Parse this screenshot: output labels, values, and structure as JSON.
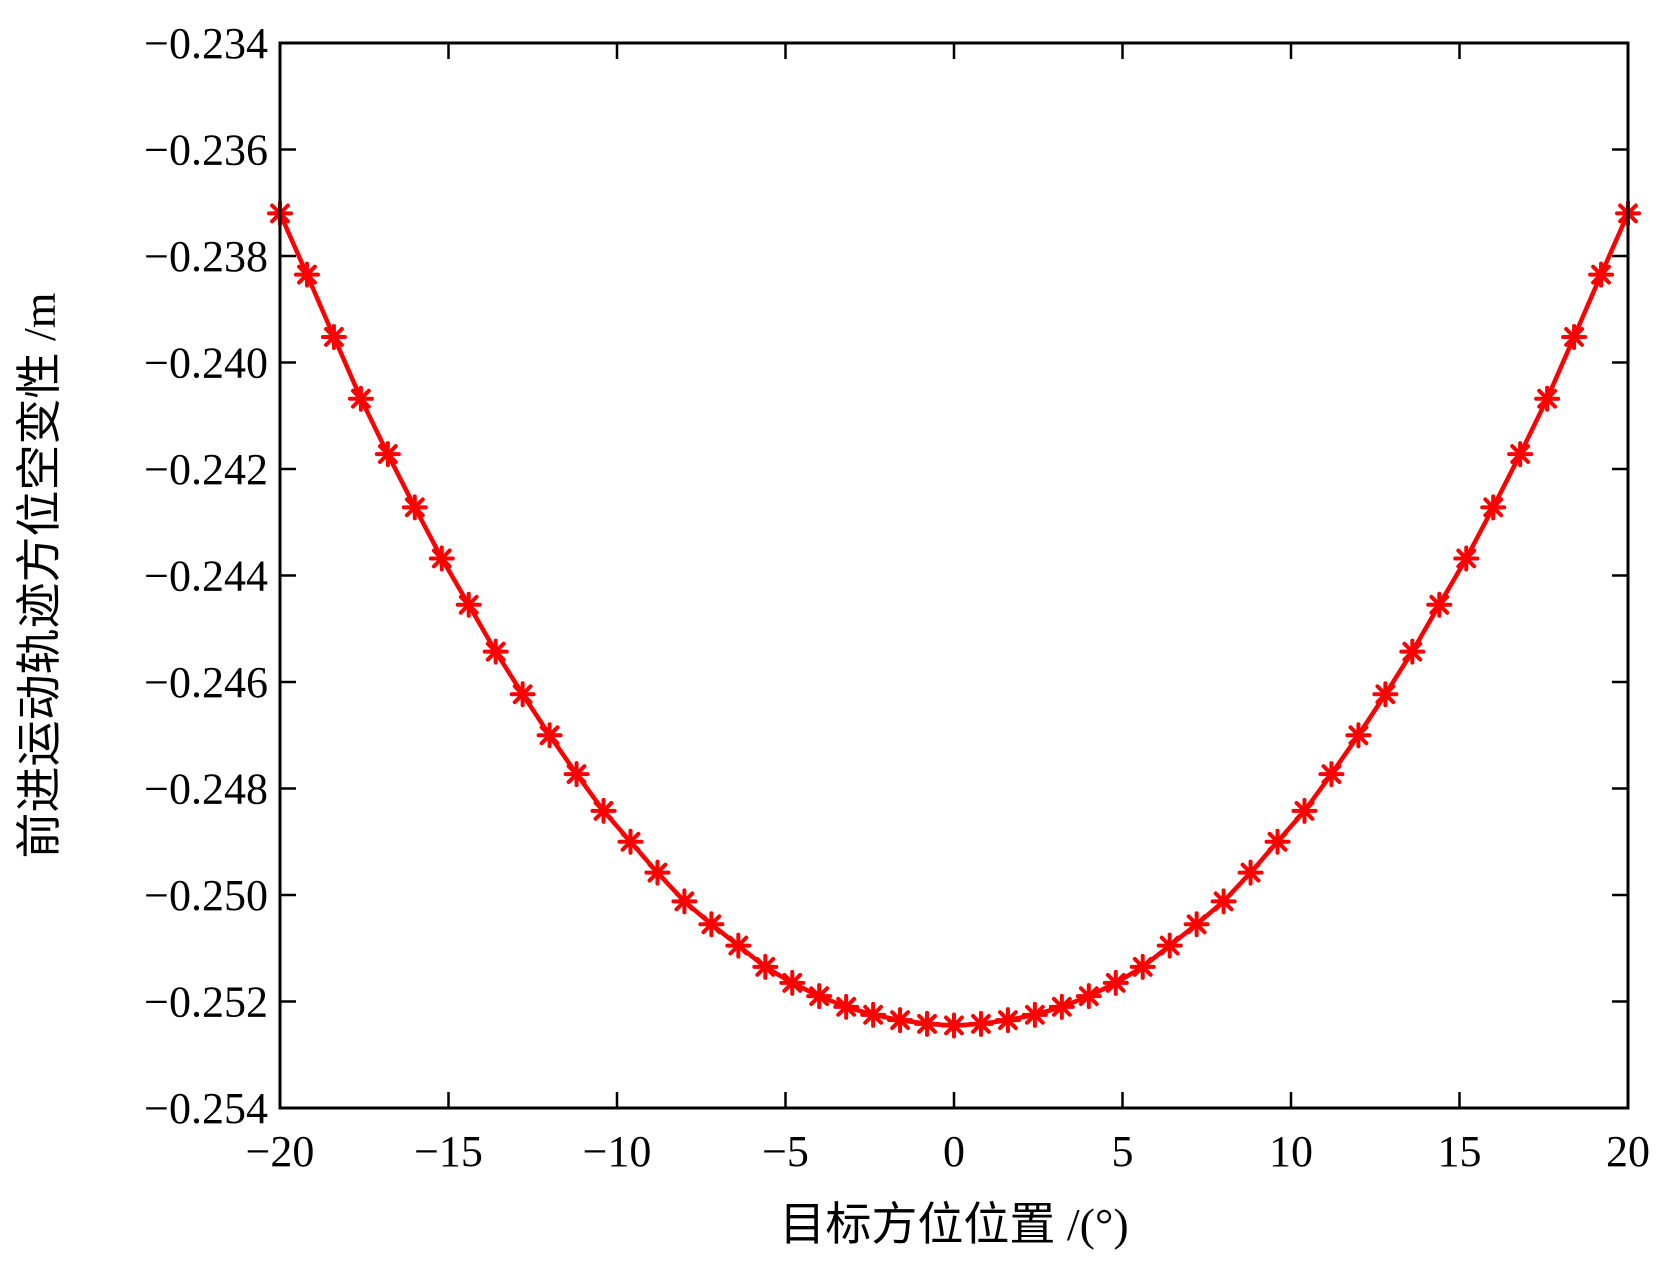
{
  "chart_data": {
    "type": "line",
    "title": "",
    "xlabel": "目标方位位置 /(°)",
    "ylabel": "前进运动轨迹方位空变性 /m",
    "xlim": [
      -20,
      20
    ],
    "ylim": [
      -0.254,
      -0.234
    ],
    "xticks": [
      -20,
      -15,
      -10,
      -5,
      0,
      5,
      10,
      15,
      20
    ],
    "xtick_labels": [
      "−20",
      "−15",
      "−10",
      "−5",
      "0",
      "5",
      "10",
      "15",
      "20"
    ],
    "yticks": [
      -0.234,
      -0.236,
      -0.238,
      -0.24,
      -0.242,
      -0.244,
      -0.246,
      -0.248,
      -0.25,
      -0.252,
      -0.254
    ],
    "ytick_labels": [
      "−0.234",
      "−0.236",
      "−0.238",
      "−0.240",
      "−0.242",
      "−0.244",
      "−0.246",
      "−0.248",
      "−0.250",
      "−0.252",
      "−0.254"
    ],
    "grid": false,
    "legend": "none",
    "color": "#ff0000",
    "marker": "asterisk",
    "series": [
      {
        "x": [
          -20.0,
          -19.2,
          -18.4,
          -17.6,
          -16.8,
          -16.0,
          -15.2,
          -14.4,
          -13.6,
          -12.8,
          -12.0,
          -11.2,
          -10.4,
          -9.6,
          -8.8,
          -8.0,
          -7.2,
          -6.4,
          -5.6,
          -4.8,
          -4.0,
          -3.2,
          -2.4,
          -1.6,
          -0.8,
          0.0,
          0.8,
          1.6,
          2.4,
          3.2,
          4.0,
          4.8,
          5.6,
          6.4,
          7.2,
          8.0,
          8.8,
          9.6,
          10.4,
          11.2,
          12.0,
          12.8,
          13.6,
          14.4,
          15.2,
          16.0,
          16.8,
          17.6,
          18.4,
          19.2,
          20.0
        ],
        "y": [
          -0.2372,
          -0.23835,
          -0.23952,
          -0.24068,
          -0.24172,
          -0.24272,
          -0.24368,
          -0.24455,
          -0.24543,
          -0.24623,
          -0.247,
          -0.24773,
          -0.24842,
          -0.249,
          -0.24958,
          -0.25012,
          -0.25055,
          -0.25095,
          -0.25135,
          -0.25165,
          -0.2519,
          -0.2521,
          -0.25225,
          -0.25235,
          -0.25242,
          -0.25245,
          -0.25242,
          -0.25235,
          -0.25225,
          -0.2521,
          -0.2519,
          -0.25165,
          -0.25135,
          -0.25095,
          -0.25055,
          -0.25012,
          -0.24958,
          -0.249,
          -0.24842,
          -0.24773,
          -0.247,
          -0.24623,
          -0.24543,
          -0.24455,
          -0.24368,
          -0.24272,
          -0.24172,
          -0.24068,
          -0.23952,
          -0.23835,
          -0.2372
        ]
      }
    ]
  }
}
